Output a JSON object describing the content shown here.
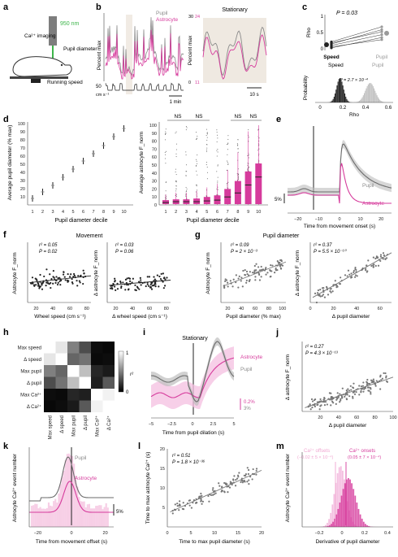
{
  "colors": {
    "pupil": "#8a8a8a",
    "astrocyte": "#d63b9c",
    "astro_light": "#f4bfe0",
    "dark": "#222222",
    "beige": "#efe9e1",
    "laser": "#3db54a"
  },
  "panels": {
    "a": {
      "letter": "a",
      "laser": "950 nm",
      "imaging": "Ca²⁺ imaging",
      "pupil": "Pupil diameter",
      "speed": "Running speed"
    },
    "b": {
      "letter": "b",
      "legend_pupil": "Pupil",
      "legend_astro": "Astrocyte",
      "ylabel": "Percent max",
      "stationary": "Stationary",
      "speed_unit": "cm s⁻¹",
      "speed_tick": "50",
      "time_bar": "1 min",
      "time_bar_right": "10 s",
      "right_top_left": "30",
      "right_top_right": "24",
      "right_bot_left": "0",
      "right_bot_right": "11"
    },
    "c": {
      "letter": "c",
      "pval": "P = 0.03",
      "ylabel": "Rho",
      "x_speed": "Speed",
      "x_pupil": "Pupil",
      "hist_ylabel": "Probability",
      "hist_speed": "Speed",
      "hist_pupil": "Pupil",
      "hist_p": "P = 2.7 × 10⁻⁴",
      "hist_xlabel": "Rho",
      "yticks": [
        "1",
        "0.5",
        "0"
      ],
      "hist_xticks": [
        "0",
        "0.2",
        "0.4",
        "0.6"
      ]
    },
    "d": {
      "letter": "d",
      "left_ylabel": "Average pupil diameter (% max)",
      "left_xlabel": "Pupil diameter decile",
      "left_yticks": [
        "100",
        "90",
        "80",
        "70",
        "60",
        "50",
        "40",
        "30",
        "20",
        "10"
      ],
      "right_ylabel": "Average astrocyte F_norm",
      "right_xlabel": "Pupil diameter decile",
      "right_yticks": [
        "100",
        "90",
        "80",
        "70",
        "60",
        "50",
        "40",
        "30",
        "20",
        "10",
        "0"
      ],
      "deciles": [
        "1",
        "2",
        "3",
        "4",
        "5",
        "6",
        "7",
        "8",
        "9",
        "10"
      ],
      "ns": "NS"
    },
    "e": {
      "letter": "e",
      "pupil": "Pupil",
      "astro": "Astrocyte",
      "scale": "5%",
      "xlabel": "Time from movement onset (s)",
      "xticks": [
        "−20",
        "−10",
        "0",
        "10",
        "20"
      ]
    },
    "f": {
      "letter": "f",
      "title": "Movement",
      "left_stats": [
        "r² = 0.05",
        "P = 0.02"
      ],
      "right_stats": [
        "r² = 0.03",
        "P = 0.06"
      ],
      "left_ylabel": "Astrocyte F_norm",
      "right_ylabel": "Δ astrocyte F_norm",
      "left_xlabel": "Wheel speed (cm s⁻¹)",
      "right_xlabel": "Δ wheel speed (cm s⁻¹)",
      "xticks": [
        "20",
        "40",
        "60",
        "80"
      ]
    },
    "g": {
      "letter": "g",
      "title": "Pupil diameter",
      "left_stats": [
        "r² = 0.09",
        "P = 2 × 10⁻³"
      ],
      "right_stats": [
        "r² = 0.37",
        "P = 5.5 × 10⁻¹⁰"
      ],
      "left_ylabel": "Astrocyte F_norm",
      "right_ylabel": "Δ astrocyte F_norm",
      "left_xlabel": "Pupil diameter (% max)",
      "right_xlabel": "Δ pupil diameter",
      "left_xticks": [
        "20",
        "40",
        "60",
        "80",
        "100"
      ],
      "right_xticks": [
        "0",
        "20",
        "40",
        "60"
      ]
    },
    "h": {
      "letter": "h",
      "labels": [
        "Max speed",
        "Δ speed",
        "Max pupil",
        "Δ pupil",
        "Max Ca²⁺",
        "Δ Ca²⁺"
      ],
      "cbar_top": "1",
      "cbar_bottom": "0",
      "cbar_label": "r²"
    },
    "i": {
      "letter": "i",
      "title": "Stationary",
      "astro": "Astrocyte",
      "pupil": "Pupil",
      "scale_a": "0.2%",
      "scale_b": "3%",
      "xlabel": "Time from pupil dilation (s)",
      "xticks": [
        "−5",
        "−2.5",
        "0",
        "2.5",
        "5"
      ]
    },
    "j": {
      "letter": "j",
      "stats": [
        "r² = 0.27",
        "P = 4.3 × 10⁻¹³"
      ],
      "ylabel": "Δ astrocyte F_norm",
      "xlabel": "Δ pupil diameter",
      "xticks": [
        "20",
        "40",
        "60",
        "80",
        "100"
      ]
    },
    "k": {
      "letter": "k",
      "pupil": "Pupil",
      "astro": "Astrocyte",
      "scale": "5%",
      "ylabel": "Astrocyte Ca²⁺ event number",
      "xlabel": "Time from movement offset (s)",
      "xticks": [
        "−20",
        "0",
        "20"
      ]
    },
    "l": {
      "letter": "l",
      "stats": [
        "r² = 0.51",
        "P = 1.8 × 10⁻³⁶"
      ],
      "ylabel": "Time to max astrocyte Ca²⁺ (s)",
      "xlabel": "Time to max pupil diameter (s)",
      "xticks": [
        "0",
        "5",
        "10",
        "15",
        "20"
      ],
      "yticks": [
        "20",
        "15",
        "10",
        "5"
      ]
    },
    "m": {
      "letter": "m",
      "offsets": "Ca²⁺ offsets",
      "offsets_val": "(−0.02 ± 5 × 10⁻⁴)",
      "onsets": "Ca²⁺ onsets",
      "onsets_val": "(0.05 ± 7 × 10⁻⁴)",
      "ylabel": "Astrocyte Ca²⁺ event number",
      "xlabel": "Derivative of pupil diameter",
      "xticks": [
        "−0.2",
        "0",
        "0.2",
        "0.4"
      ]
    }
  },
  "chart_data": [
    {
      "panel": "c-top",
      "type": "line",
      "categories": [
        "Speed",
        "Pupil"
      ],
      "series": [
        {
          "values": [
            0.21,
            0.52
          ]
        },
        {
          "values": [
            0.18,
            0.58
          ]
        },
        {
          "values": [
            0.14,
            0.44
          ]
        },
        {
          "values": [
            0.1,
            0.3
          ]
        },
        {
          "values": [
            0.24,
            0.66
          ]
        },
        {
          "values": [
            0.07,
            0.36
          ]
        }
      ],
      "means": [
        0.16,
        0.48
      ],
      "ylim": [
        0,
        1
      ]
    },
    {
      "panel": "d-left",
      "type": "scatter",
      "x": [
        1,
        2,
        3,
        4,
        5,
        6,
        7,
        8,
        9,
        10
      ],
      "y": [
        8,
        16,
        24,
        34,
        44,
        54,
        63,
        73,
        84,
        94
      ],
      "xlabel": "Pupil diameter decile",
      "ylabel": "Average pupil diameter (% max)",
      "ylim": [
        0,
        100
      ]
    },
    {
      "panel": "d-right",
      "type": "bar",
      "categories": [
        "1",
        "2",
        "3",
        "4",
        "5",
        "6",
        "7",
        "8",
        "9",
        "10"
      ],
      "series": [
        {
          "name": "median",
          "values": [
            3,
            4,
            4,
            4,
            5,
            6,
            10,
            15,
            25,
            35
          ]
        },
        {
          "name": "q3",
          "values": [
            6,
            7,
            7,
            8,
            10,
            12,
            20,
            30,
            42,
            52
          ]
        }
      ],
      "xlabel": "Pupil diameter decile",
      "ylabel": "Average astrocyte F_norm",
      "ylim": [
        0,
        100
      ]
    },
    {
      "panel": "f-left",
      "type": "scatter",
      "fit": {
        "intercept": 32,
        "slope": 0.16
      },
      "xlabel": "Wheel speed (cm s⁻¹)",
      "ylabel": "Astrocyte F_norm",
      "xlim": [
        10,
        85
      ]
    },
    {
      "panel": "g-right",
      "type": "scatter",
      "fit": {
        "intercept": 5,
        "slope": 0.9
      },
      "xlabel": "Δ pupil diameter",
      "ylabel": "Δ astrocyte F_norm",
      "xlim": [
        0,
        70
      ]
    },
    {
      "panel": "h",
      "type": "heatmap",
      "labels": [
        "Max speed",
        "Δ speed",
        "Max pupil",
        "Δ pupil",
        "Max Ca²⁺",
        "Δ Ca²⁺"
      ],
      "values": [
        [
          1.0,
          0.9,
          0.5,
          0.3,
          0.05,
          0.03
        ],
        [
          0.9,
          1.0,
          0.4,
          0.45,
          0.04,
          0.05
        ],
        [
          0.5,
          0.4,
          1.0,
          0.75,
          0.15,
          0.1
        ],
        [
          0.3,
          0.45,
          0.75,
          1.0,
          0.12,
          0.35
        ],
        [
          0.05,
          0.04,
          0.15,
          0.12,
          1.0,
          0.95
        ],
        [
          0.03,
          0.05,
          0.1,
          0.35,
          0.95,
          1.0
        ]
      ]
    },
    {
      "panel": "l",
      "type": "scatter",
      "fit": {
        "intercept": 3.5,
        "slope": 0.55
      },
      "xlabel": "Time to max pupil diameter (s)",
      "ylabel": "Time to max astrocyte Ca²⁺ (s)",
      "xlim": [
        0,
        20
      ],
      "ylim": [
        0,
        20
      ]
    },
    {
      "panel": "m",
      "type": "bar",
      "series": [
        {
          "name": "Ca²⁺ offsets",
          "mean": -0.02
        },
        {
          "name": "Ca²⁺ onsets",
          "mean": 0.05
        }
      ],
      "xlabel": "Derivative of pupil diameter",
      "xlim": [
        -0.35,
        0.45
      ]
    }
  ]
}
